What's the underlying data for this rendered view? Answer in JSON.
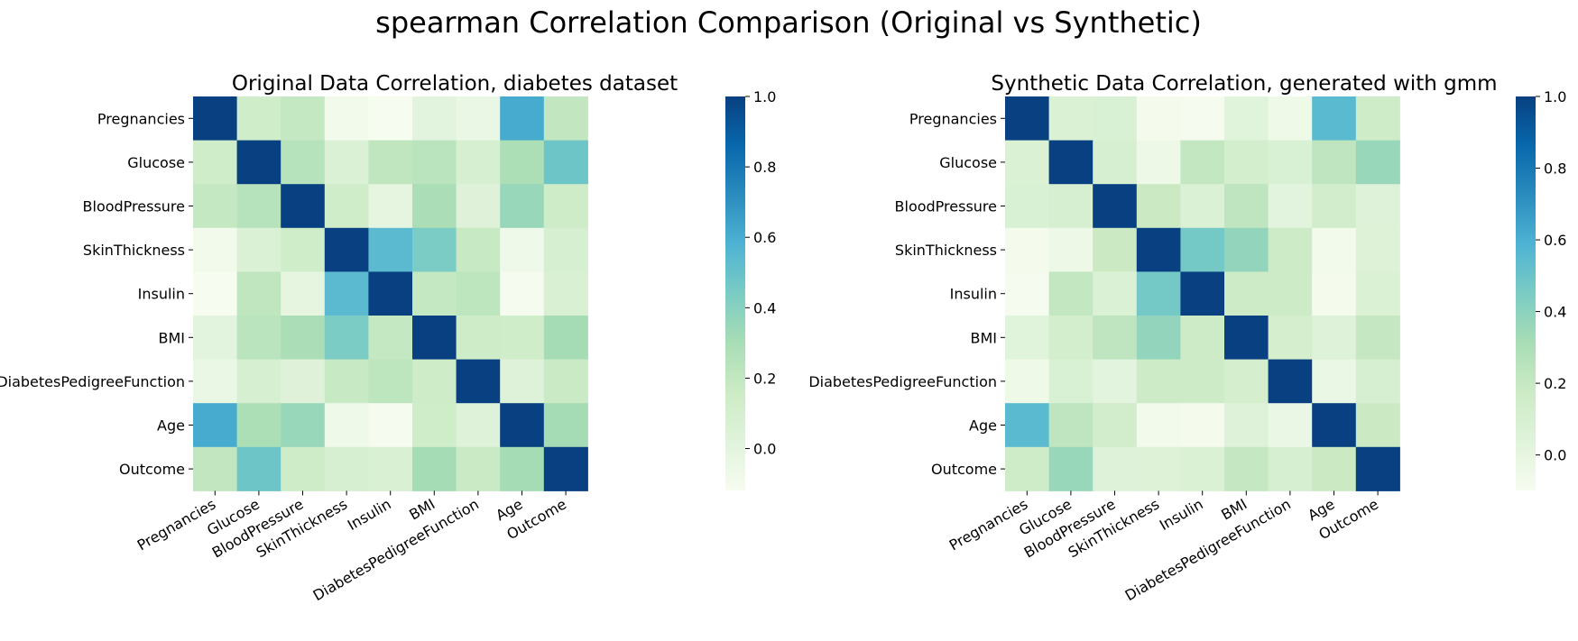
{
  "figure": {
    "title": "spearman Correlation Comparison (Original vs Synthetic)"
  },
  "chart_data": [
    {
      "type": "heatmap",
      "title": "Original Data Correlation, diabetes dataset",
      "labels": [
        "Pregnancies",
        "Glucose",
        "BloodPressure",
        "SkinThickness",
        "Insulin",
        "BMI",
        "DiabetesPedigreeFunction",
        "Age",
        "Outcome"
      ],
      "colormap": "GnBu",
      "vmin": -0.12,
      "vmax": 1.0,
      "colorbar_ticks": [
        "0.0",
        "0.2",
        "0.4",
        "0.6",
        "0.8",
        "1.0"
      ],
      "values": [
        [
          1.0,
          0.13,
          0.19,
          -0.09,
          -0.13,
          0.0,
          -0.04,
          0.61,
          0.2
        ],
        [
          0.13,
          1.0,
          0.24,
          0.06,
          0.21,
          0.23,
          0.09,
          0.28,
          0.48
        ],
        [
          0.19,
          0.24,
          1.0,
          0.13,
          -0.01,
          0.29,
          0.03,
          0.35,
          0.14
        ],
        [
          -0.09,
          0.06,
          0.13,
          1.0,
          0.54,
          0.44,
          0.18,
          -0.07,
          0.09
        ],
        [
          -0.13,
          0.21,
          -0.01,
          0.54,
          1.0,
          0.19,
          0.22,
          -0.11,
          0.07
        ],
        [
          0.0,
          0.23,
          0.29,
          0.44,
          0.19,
          1.0,
          0.14,
          0.13,
          0.31
        ],
        [
          -0.04,
          0.09,
          0.03,
          0.18,
          0.22,
          0.14,
          1.0,
          0.04,
          0.17
        ],
        [
          0.61,
          0.28,
          0.35,
          -0.07,
          -0.11,
          0.13,
          0.04,
          1.0,
          0.31
        ],
        [
          0.2,
          0.48,
          0.14,
          0.09,
          0.07,
          0.31,
          0.17,
          0.31,
          1.0
        ]
      ]
    },
    {
      "type": "heatmap",
      "title": "Synthetic Data Correlation, generated with gmm",
      "labels": [
        "Pregnancies",
        "Glucose",
        "BloodPressure",
        "SkinThickness",
        "Insulin",
        "BMI",
        "DiabetesPedigreeFunction",
        "Age",
        "Outcome"
      ],
      "colormap": "GnBu",
      "vmin": -0.1,
      "vmax": 1.0,
      "colorbar_ticks": [
        "0.0",
        "0.2",
        "0.4",
        "0.6",
        "0.8",
        "1.0"
      ],
      "values": [
        [
          1.0,
          0.08,
          0.09,
          -0.08,
          -0.09,
          0.04,
          -0.05,
          0.55,
          0.16
        ],
        [
          0.08,
          1.0,
          0.1,
          -0.04,
          0.21,
          0.13,
          0.09,
          0.23,
          0.36
        ],
        [
          0.09,
          0.1,
          1.0,
          0.18,
          0.07,
          0.23,
          0.02,
          0.14,
          0.05
        ],
        [
          -0.08,
          -0.04,
          0.18,
          1.0,
          0.47,
          0.38,
          0.17,
          -0.07,
          0.06
        ],
        [
          -0.09,
          0.21,
          0.07,
          0.47,
          1.0,
          0.17,
          0.17,
          -0.08,
          0.08
        ],
        [
          0.04,
          0.13,
          0.23,
          0.38,
          0.17,
          1.0,
          0.12,
          0.05,
          0.2
        ],
        [
          -0.05,
          0.09,
          0.02,
          0.17,
          0.17,
          0.12,
          1.0,
          -0.02,
          0.1
        ],
        [
          0.55,
          0.23,
          0.14,
          -0.07,
          -0.08,
          0.05,
          -0.02,
          1.0,
          0.18
        ],
        [
          0.16,
          0.36,
          0.05,
          0.06,
          0.08,
          0.2,
          0.1,
          0.18,
          1.0
        ]
      ]
    }
  ]
}
